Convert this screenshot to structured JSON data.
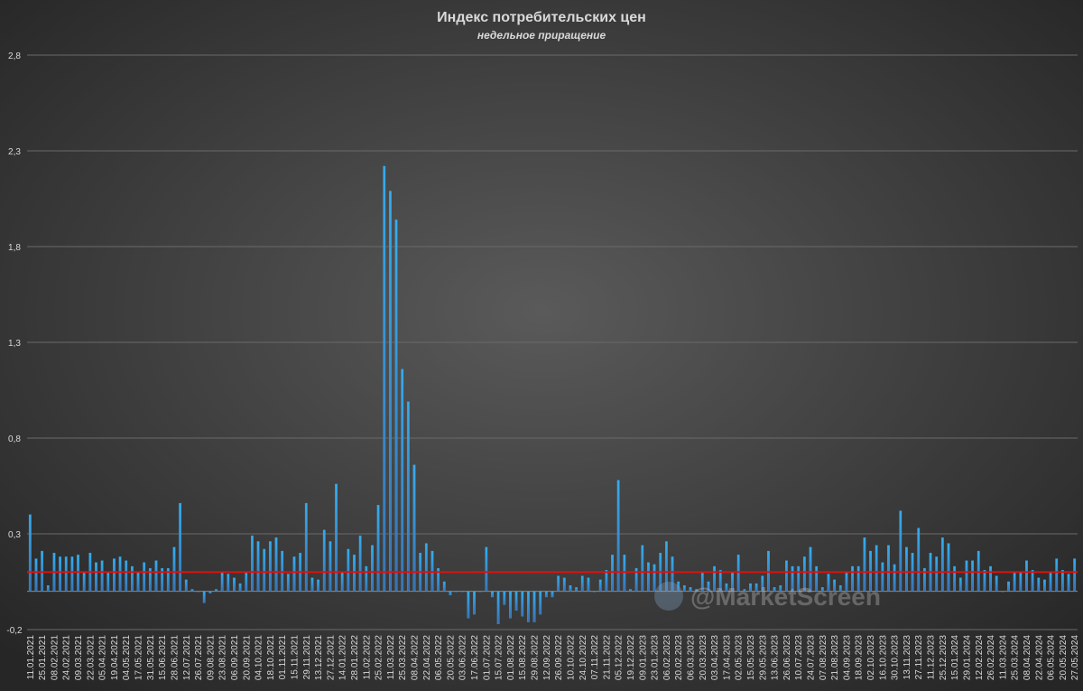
{
  "chart_data": {
    "type": "bar",
    "title": "Индекс потребительских цен",
    "subtitle": "недельное приращение",
    "watermark": "@MarketScreen",
    "categories": [
      "11.01.2021",
      null,
      "25.01.2021",
      null,
      "08.02.2021",
      null,
      "24.02.2021",
      null,
      "09.03.2021",
      null,
      "22.03.2021",
      null,
      "05.04.2021",
      null,
      "19.04.2021",
      null,
      "04.05.2021",
      null,
      "17.05.2021",
      null,
      "31.05.2021",
      null,
      "15.06.2021",
      null,
      "28.06.2021",
      null,
      "12.07.2021",
      null,
      "26.07.2021",
      null,
      "09.08.2021",
      null,
      "23.08.2021",
      null,
      "06.09.2021",
      null,
      "20.09.2021",
      null,
      "04.10.2021",
      null,
      "18.10.2021",
      null,
      "01.11.2021",
      null,
      "15.11.2021",
      null,
      "29.11.2021",
      null,
      "13.12.2021",
      null,
      "27.12.2021",
      null,
      "14.01.2022",
      null,
      "28.01.2022",
      null,
      "11.02.2022",
      null,
      "25.02.2022",
      null,
      "11.03.2022",
      null,
      "25.03.2022",
      null,
      "08.04.2022",
      null,
      "22.04.2022",
      null,
      "06.05.2022",
      null,
      "20.05.2022",
      null,
      "03.06.2022",
      null,
      "17.06.2022",
      null,
      "01.07.2022",
      null,
      "15.07.2022",
      null,
      "01.08.2022",
      null,
      "15.08.2022",
      null,
      "29.08.2022",
      null,
      "12.09.2022",
      null,
      "26.09.2022",
      null,
      "10.10.2022",
      null,
      "24.10.2022",
      null,
      "07.11.2022",
      null,
      "21.11.2022",
      null,
      "05.12.2022",
      null,
      "19.12.2022",
      null,
      "09.01.2023",
      null,
      "23.01.2023",
      null,
      "06.02.2023",
      null,
      "20.02.2023",
      null,
      "06.03.2023",
      null,
      "20.03.2023",
      null,
      "03.04.2023",
      null,
      "17.04.2023",
      null,
      "02.05.2023",
      null,
      "15.05.2023",
      null,
      "29.05.2023",
      null,
      "13.06.2023",
      null,
      "26.06.2023",
      null,
      "10.07.2023",
      null,
      "24.07.2023",
      null,
      "07.08.2023",
      null,
      "21.08.2023",
      null,
      "04.09.2023",
      null,
      "18.09.2023",
      null,
      "02.10.2023",
      null,
      "16.10.2023",
      null,
      "30.10.2023",
      null,
      "13.11.2023",
      null,
      "27.11.2023",
      null,
      "11.12.2023",
      null,
      "25.12.2023",
      null,
      "15.01.2024",
      null,
      "29.01.2024",
      null,
      "12.02.2024",
      null,
      "26.02.2024",
      null,
      "11.03.2024",
      null,
      "25.03.2024",
      null,
      "08.04.2024",
      null,
      "22.04.2024",
      null,
      "06.05.2024",
      null,
      "20.05.2024",
      null,
      "27.05.2024"
    ],
    "values": [
      0.4,
      0.17,
      0.21,
      0.03,
      0.2,
      0.18,
      0.18,
      0.18,
      0.19,
      0.1,
      0.2,
      0.15,
      0.16,
      0.1,
      0.17,
      0.18,
      0.16,
      0.13,
      0.1,
      0.15,
      0.12,
      0.16,
      0.12,
      0.12,
      0.23,
      0.46,
      0.06,
      0.01,
      0,
      -0.06,
      -0.01,
      0.01,
      0.1,
      0.09,
      0.07,
      0.04,
      0.1,
      0.29,
      0.26,
      0.22,
      0.26,
      0.28,
      0.21,
      0.09,
      0.18,
      0.2,
      0.46,
      0.07,
      0.06,
      0.32,
      0.26,
      0.56,
      0.1,
      0.22,
      0.19,
      0.29,
      0.13,
      0.24,
      0.45,
      2.22,
      2.09,
      1.94,
      1.16,
      0.99,
      0.66,
      0.2,
      0.25,
      0.21,
      0.12,
      0.05,
      -0.02,
      0,
      0,
      -0.14,
      -0.12,
      0,
      0.23,
      -0.03,
      -0.17,
      -0.07,
      -0.14,
      -0.1,
      -0.13,
      -0.16,
      -0.16,
      -0.12,
      -0.03,
      -0.03,
      0.08,
      0.07,
      0.03,
      0.02,
      0.08,
      0.07,
      0,
      0.06,
      0.11,
      0.19,
      0.58,
      0.19,
      0.01,
      0.12,
      0.24,
      0.15,
      0.14,
      0.2,
      0.26,
      0.18,
      0.05,
      0.03,
      0.02,
      0.01,
      0.1,
      0.05,
      0.13,
      0.11,
      0.04,
      0.1,
      0.19,
      0.01,
      0.04,
      0.04,
      0.08,
      0.21,
      0.02,
      0.03,
      0.16,
      0.13,
      0.13,
      0.18,
      0.23,
      0.13,
      0.02,
      0.09,
      0.06,
      0.03,
      0.1,
      0.13,
      0.13,
      0.28,
      0.21,
      0.24,
      0.15,
      0.24,
      0.14,
      0.42,
      0.23,
      0.2,
      0.33,
      0.12,
      0.2,
      0.18,
      0.28,
      0.25,
      0.13,
      0.07,
      0.16,
      0.16,
      0.21,
      0.11,
      0.13,
      0.08,
      0,
      0.05,
      0.1,
      0.1,
      0.16,
      0.11,
      0.07,
      0.06,
      0.1,
      0.17,
      0.11,
      0.09,
      0.17
    ],
    "color": "#2fa0e6",
    "reference_line": {
      "value": 0.1,
      "color": "#e01010"
    },
    "ylim": [
      -0.2,
      2.8
    ],
    "yticks": [
      {
        "value": -0.2,
        "label": "-0,2"
      },
      {
        "value": 0.3,
        "label": "0,3"
      },
      {
        "value": 0.8,
        "label": "0,8"
      },
      {
        "value": 1.3,
        "label": "1,3"
      },
      {
        "value": 1.8,
        "label": "1,8"
      },
      {
        "value": 2.3,
        "label": "2,3"
      },
      {
        "value": 2.8,
        "label": "2,8"
      }
    ],
    "grid": true
  }
}
